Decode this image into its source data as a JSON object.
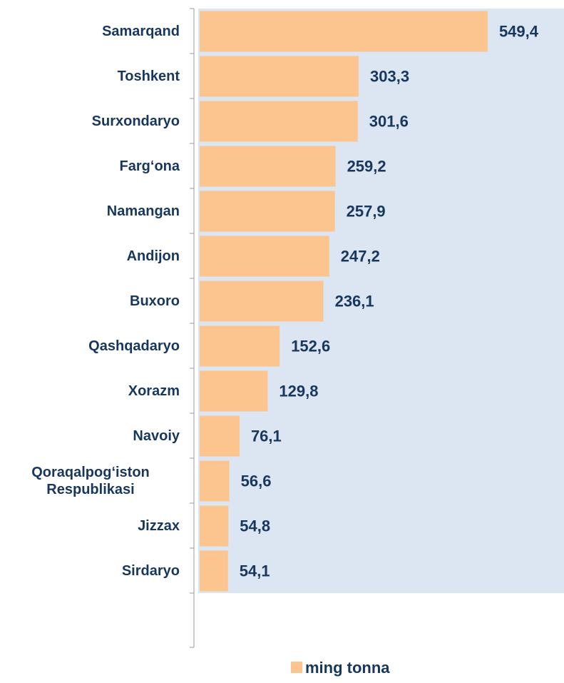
{
  "chart_data": {
    "type": "barh",
    "categories": [
      "Samarqand",
      "Toshkent",
      "Surxondaryo",
      "Farg‘ona",
      "Namangan",
      "Andijon",
      "Buxoro",
      "Qashqadaryo",
      "Xorazm",
      "Navoiy",
      "Qoraqalpog‘iston Respublikasi",
      "Jizzax",
      "Sirdaryo"
    ],
    "series": [
      {
        "name": "ming tonna",
        "color": "#fcc48f",
        "values": [
          549.4,
          303.3,
          301.6,
          259.2,
          257.9,
          247.2,
          236.1,
          152.6,
          129.8,
          76.1,
          56.6,
          54.8,
          54.1
        ],
        "value_labels": [
          "549,4",
          "303,3",
          "301,6",
          "259,2",
          "257,9",
          "247,2",
          "236,1",
          "152,6",
          "129,8",
          "76,1",
          "56,6",
          "54,8",
          "54,1"
        ]
      }
    ],
    "xlim": [
      0,
      695
    ],
    "legend": "bottom"
  }
}
